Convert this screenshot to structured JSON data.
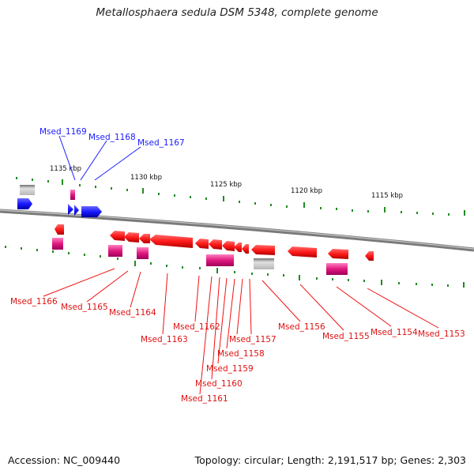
{
  "title": "Metallosphaera sedula DSM 5348, complete genome",
  "footer": {
    "accession": "Accession: NC_009440",
    "stats": "Topology: circular; Length: 2,191,517 bp; Genes: 2,303"
  },
  "colors": {
    "forward_gene": "#1a1aff",
    "reverse_gene": "#ff1a1a",
    "rna_gene": "#e0187f",
    "pseudo_gene": "#c8c8c8",
    "backbone": "#808080",
    "tick": "#228b22"
  },
  "scale_labels": [
    "1135 kbp",
    "1130 kbp",
    "1125 kbp",
    "1120 kbp",
    "1115 kbp"
  ],
  "forward_labels": [
    "Msed_1169",
    "Msed_1168",
    "Msed_1167"
  ],
  "reverse_labels": [
    "Msed_1166",
    "Msed_1165",
    "Msed_1164",
    "Msed_1163",
    "Msed_1162",
    "Msed_1161",
    "Msed_1160",
    "Msed_1159",
    "Msed_1158",
    "Msed_1157",
    "Msed_1156",
    "Msed_1155",
    "Msed_1154",
    "Msed_1153"
  ]
}
